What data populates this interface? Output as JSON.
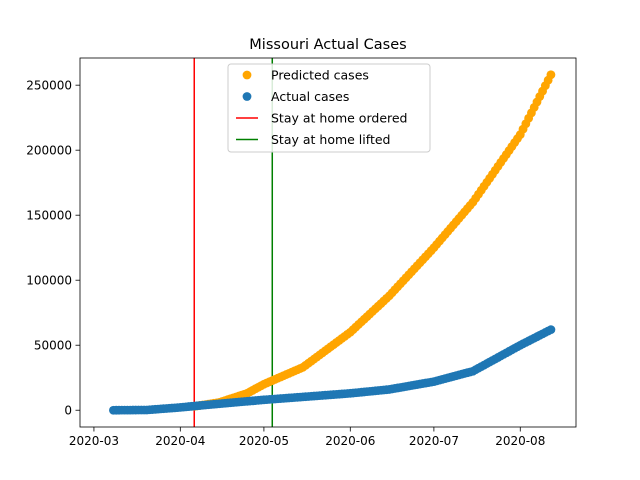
{
  "chart_data": {
    "type": "scatter",
    "title": "Missouri Actual Cases",
    "xlabel": "",
    "ylabel": "",
    "x_range": [
      "2020-02-25",
      "2020-08-21"
    ],
    "ylim": [
      -12900,
      270900
    ],
    "x_ticks": [
      "2020-03-01",
      "2020-04-01",
      "2020-05-01",
      "2020-06-01",
      "2020-07-01",
      "2020-08-01"
    ],
    "x_tick_labels": [
      "2020-03",
      "2020-04",
      "2020-05",
      "2020-06",
      "2020-07",
      "2020-08"
    ],
    "y_ticks": [
      0,
      50000,
      100000,
      150000,
      200000,
      250000
    ],
    "y_tick_labels": [
      "0",
      "50000",
      "100000",
      "150000",
      "200000",
      "250000"
    ],
    "grid": false,
    "legend_position": "top-center",
    "date_range": {
      "start": "2020-03-08",
      "end": "2020-08-12"
    },
    "series": [
      {
        "name": "Predicted cases",
        "color": "#ffa500",
        "marker": "circle",
        "start_date": "2020-04-06",
        "points": [
          [
            "2020-04-06",
            3000
          ],
          [
            "2020-04-15",
            6000
          ],
          [
            "2020-04-25",
            13000
          ],
          [
            "2020-05-01",
            20000
          ],
          [
            "2020-05-15",
            33000
          ],
          [
            "2020-06-01",
            60000
          ],
          [
            "2020-06-15",
            88000
          ],
          [
            "2020-07-01",
            125000
          ],
          [
            "2020-07-15",
            160000
          ],
          [
            "2020-08-01",
            212000
          ],
          [
            "2020-08-12",
            258000
          ]
        ]
      },
      {
        "name": "Actual cases",
        "color": "#1f77b4",
        "marker": "circle",
        "points": [
          [
            "2020-03-08",
            0
          ],
          [
            "2020-03-20",
            200
          ],
          [
            "2020-03-31",
            2000
          ],
          [
            "2020-04-15",
            5000
          ],
          [
            "2020-05-01",
            8000
          ],
          [
            "2020-06-01",
            13000
          ],
          [
            "2020-06-15",
            16000
          ],
          [
            "2020-07-01",
            22000
          ],
          [
            "2020-07-15",
            30000
          ],
          [
            "2020-08-01",
            50000
          ],
          [
            "2020-08-12",
            62000
          ]
        ]
      }
    ],
    "vlines": [
      {
        "name": "Stay at home ordered",
        "date": "2020-04-06",
        "color": "#ff0000"
      },
      {
        "name": "Stay at home lifted",
        "date": "2020-05-04",
        "color": "#008000"
      }
    ]
  }
}
